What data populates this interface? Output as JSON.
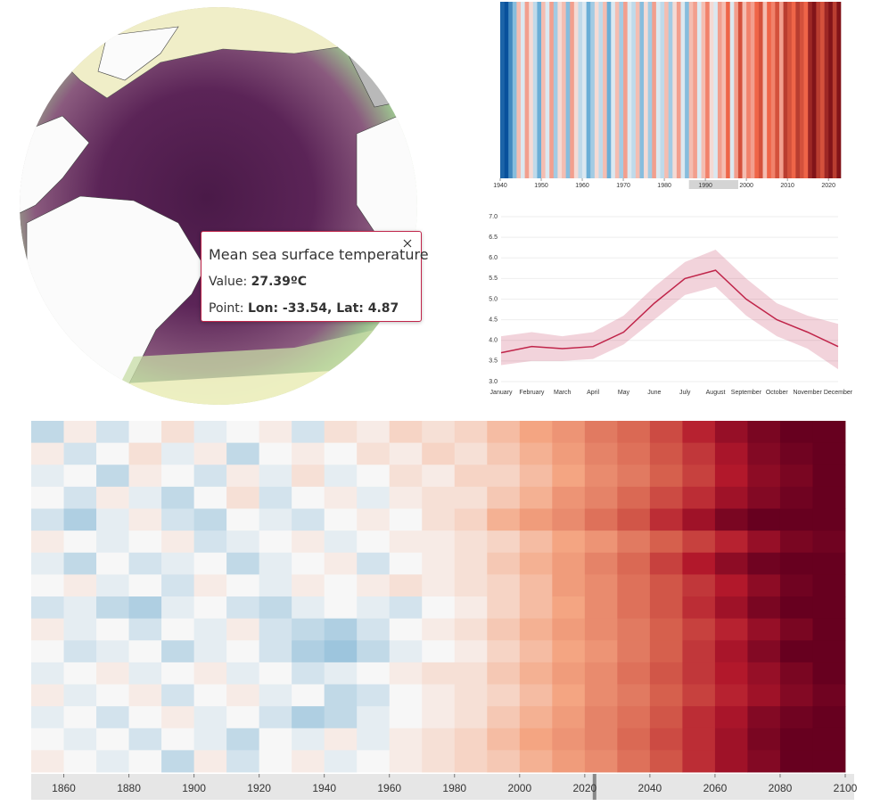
{
  "tooltip": {
    "title": "Mean sea surface temperature",
    "value_label": "Value:",
    "value": "27.39ºC",
    "point_label": "Point:",
    "point": "Lon: -33.54, Lat: 4.87"
  },
  "chart_data": [
    {
      "type": "stripes",
      "x": [
        1940,
        1941,
        1942,
        1943,
        1944,
        1945,
        1946,
        1947,
        1948,
        1949,
        1950,
        1951,
        1952,
        1953,
        1954,
        1955,
        1956,
        1957,
        1958,
        1959,
        1960,
        1961,
        1962,
        1963,
        1964,
        1965,
        1966,
        1967,
        1968,
        1969,
        1970,
        1971,
        1972,
        1973,
        1974,
        1975,
        1976,
        1977,
        1978,
        1979,
        1980,
        1981,
        1982,
        1983,
        1984,
        1985,
        1986,
        1987,
        1988,
        1989,
        1990,
        1991,
        1992,
        1993,
        1994,
        1995,
        1996,
        1997,
        1998,
        1999,
        2000,
        2001,
        2002,
        2003,
        2004,
        2005,
        2006,
        2007,
        2008,
        2009,
        2010,
        2011,
        2012,
        2013,
        2014,
        2015,
        2016,
        2017,
        2018,
        2019,
        2020,
        2021,
        2022
      ],
      "values": [
        -0.9,
        -1.0,
        -0.7,
        -0.4,
        0.2,
        -0.1,
        0.3,
        0.1,
        -0.2,
        -0.5,
        0.2,
        -0.1,
        0.3,
        -0.3,
        0.1,
        0.2,
        -0.4,
        0.3,
        0.1,
        -0.2,
        -0.1,
        -0.5,
        -0.3,
        0.1,
        -0.2,
        0.2,
        -0.5,
        -0.1,
        0.2,
        -0.3,
        0.3,
        -0.1,
        -0.2,
        0.2,
        -0.4,
        0.1,
        -0.3,
        0.3,
        -0.1,
        -0.2,
        0.2,
        -0.3,
        0.1,
        0.3,
        -0.1,
        -0.4,
        0.2,
        0.3,
        -0.1,
        0.2,
        0.4,
        0.1,
        -0.1,
        0.3,
        0.2,
        0.5,
        -0.1,
        0.3,
        0.6,
        0.2,
        0.4,
        0.3,
        0.5,
        0.6,
        0.2,
        0.5,
        0.4,
        0.6,
        0.3,
        0.7,
        0.6,
        0.5,
        0.7,
        0.6,
        0.5,
        0.8,
        0.9,
        0.7,
        0.6,
        0.8,
        0.9,
        0.7,
        0.9
      ],
      "colors": [
        "#08519c",
        "#6baed6",
        "#f7f7f7",
        "#ef6548",
        "#67000d"
      ],
      "color_domain": [
        -1,
        -0.5,
        0,
        0.5,
        1
      ],
      "xlim": [
        1940,
        2023
      ],
      "xticks": [
        1940,
        1950,
        1960,
        1970,
        1980,
        1990,
        2000,
        2010,
        2020
      ],
      "brush": [
        1986,
        1998
      ]
    },
    {
      "type": "line",
      "categories": [
        "January",
        "February",
        "March",
        "April",
        "May",
        "June",
        "July",
        "August",
        "September",
        "October",
        "November",
        "December"
      ],
      "values": [
        3.7,
        3.85,
        3.8,
        3.85,
        4.2,
        4.9,
        5.5,
        5.7,
        5.0,
        4.5,
        4.2,
        3.85
      ],
      "band_low": [
        3.4,
        3.5,
        3.5,
        3.55,
        3.9,
        4.5,
        5.1,
        5.3,
        4.6,
        4.1,
        3.8,
        3.3
      ],
      "band_high": [
        4.1,
        4.2,
        4.1,
        4.2,
        4.6,
        5.3,
        5.9,
        6.2,
        5.5,
        4.9,
        4.6,
        4.4
      ],
      "color": "#c0254a",
      "ylim": [
        3,
        7
      ],
      "yticks": [
        {
          "value": 3,
          "label": "3.0"
        },
        3.5,
        {
          "value": 4,
          "label": "4.0"
        },
        4.5,
        {
          "value": 5,
          "label": "5.0"
        },
        5.5,
        {
          "value": 6,
          "label": "6.0"
        },
        6.5,
        {
          "value": 7,
          "label": "7.0"
        }
      ],
      "grid": true
    },
    {
      "type": "heatmap",
      "bins": [
        1850,
        1860,
        1870,
        1880,
        1890,
        1900,
        1910,
        1920,
        1930,
        1940,
        1950,
        1960,
        1970,
        1980,
        1990,
        2000,
        2010,
        2020,
        2030,
        2040,
        2050,
        2060,
        2070,
        2080,
        2090,
        2100
      ],
      "rows": [
        [
          -0.3,
          0.1,
          -0.2,
          0,
          0.2,
          -0.1,
          0,
          0.1,
          -0.2,
          0.2,
          0.1,
          0.3,
          0.2,
          0.3,
          0.5,
          0.7,
          0.9,
          1.2,
          1.4,
          1.7,
          2.1,
          2.5,
          2.8,
          3.0,
          3.0
        ],
        [
          0.1,
          -0.2,
          0,
          0.2,
          -0.1,
          0.1,
          -0.3,
          0,
          0.1,
          0,
          0.2,
          0.1,
          0.3,
          0.2,
          0.4,
          0.6,
          0.8,
          1.1,
          1.3,
          1.6,
          1.9,
          2.3,
          2.7,
          2.9,
          3.0
        ],
        [
          -0.1,
          0,
          -0.3,
          0.1,
          0,
          -0.2,
          0.1,
          -0.1,
          0.2,
          -0.1,
          0,
          0.2,
          0.1,
          0.3,
          0.3,
          0.5,
          0.7,
          1.0,
          1.2,
          1.5,
          1.8,
          2.2,
          2.6,
          2.8,
          3.0
        ],
        [
          0,
          -0.2,
          0.1,
          -0.1,
          -0.3,
          0,
          0.2,
          -0.2,
          0,
          0.1,
          -0.1,
          0.1,
          0.2,
          0.2,
          0.4,
          0.6,
          0.9,
          1.1,
          1.4,
          1.7,
          2.0,
          2.4,
          2.7,
          2.9,
          3.0
        ],
        [
          -0.2,
          -0.4,
          -0.1,
          0.1,
          -0.2,
          -0.3,
          0,
          -0.1,
          -0.2,
          0,
          0.1,
          0,
          0.2,
          0.3,
          0.6,
          0.8,
          1.0,
          1.3,
          1.6,
          2.0,
          2.4,
          2.8,
          3.0,
          3.0,
          3.0
        ],
        [
          0.1,
          0,
          -0.1,
          0,
          0.1,
          -0.2,
          -0.1,
          0,
          0.1,
          -0.1,
          0,
          0.1,
          0.1,
          0.2,
          0.3,
          0.5,
          0.7,
          0.9,
          1.2,
          1.5,
          1.8,
          2.1,
          2.5,
          2.8,
          2.9
        ],
        [
          -0.1,
          -0.3,
          0,
          -0.2,
          -0.1,
          0,
          -0.3,
          -0.1,
          0,
          0.1,
          -0.2,
          0,
          0.1,
          0.2,
          0.4,
          0.6,
          0.8,
          1.1,
          1.4,
          1.8,
          2.2,
          2.6,
          2.9,
          3.0,
          3.0
        ],
        [
          0,
          0.1,
          -0.1,
          0,
          -0.2,
          0.1,
          0,
          -0.1,
          0.1,
          0,
          0.1,
          0.2,
          0.1,
          0.2,
          0.3,
          0.5,
          0.8,
          1.0,
          1.3,
          1.6,
          1.9,
          2.2,
          2.6,
          2.9,
          3.0
        ],
        [
          -0.2,
          -0.1,
          -0.3,
          -0.4,
          -0.1,
          0,
          -0.2,
          -0.3,
          -0.1,
          0,
          -0.1,
          -0.2,
          0,
          0.1,
          0.3,
          0.5,
          0.7,
          1.0,
          1.3,
          1.6,
          2.0,
          2.4,
          2.8,
          3.0,
          3.0
        ],
        [
          0.1,
          -0.1,
          0,
          -0.2,
          0,
          -0.1,
          0.1,
          -0.2,
          -0.3,
          -0.4,
          -0.2,
          0,
          0.1,
          0.2,
          0.4,
          0.6,
          0.8,
          1.0,
          1.2,
          1.5,
          1.8,
          2.1,
          2.5,
          2.8,
          3.0
        ],
        [
          0,
          -0.2,
          -0.1,
          0,
          -0.3,
          -0.1,
          0,
          -0.2,
          -0.4,
          -0.5,
          -0.3,
          -0.1,
          0,
          0.1,
          0.3,
          0.5,
          0.7,
          0.9,
          1.2,
          1.5,
          1.9,
          2.3,
          2.7,
          3.0,
          3.0
        ],
        [
          -0.1,
          0,
          0.1,
          -0.1,
          0,
          0.1,
          -0.1,
          0,
          -0.2,
          -0.1,
          0,
          0.1,
          0.2,
          0.2,
          0.4,
          0.6,
          0.8,
          1.0,
          1.3,
          1.6,
          1.9,
          2.2,
          2.5,
          2.8,
          3.0
        ],
        [
          0.1,
          -0.1,
          0,
          0.1,
          -0.2,
          0,
          0.1,
          -0.1,
          0,
          -0.3,
          -0.2,
          0,
          0.1,
          0.2,
          0.3,
          0.5,
          0.7,
          1.0,
          1.2,
          1.5,
          1.8,
          2.1,
          2.4,
          2.7,
          2.9
        ],
        [
          -0.1,
          0,
          -0.2,
          0,
          0.1,
          -0.1,
          0,
          -0.2,
          -0.4,
          -0.3,
          -0.1,
          0,
          0.1,
          0.2,
          0.4,
          0.6,
          0.8,
          1.1,
          1.3,
          1.6,
          2.0,
          2.3,
          2.7,
          2.9,
          3.0
        ],
        [
          0,
          -0.1,
          0,
          -0.2,
          0,
          -0.1,
          -0.3,
          0,
          -0.1,
          0.1,
          -0.1,
          0.1,
          0.2,
          0.3,
          0.5,
          0.7,
          0.9,
          1.1,
          1.4,
          1.7,
          2.0,
          2.4,
          2.8,
          3.0,
          3.0
        ],
        [
          0.1,
          0,
          -0.1,
          0,
          -0.3,
          0.1,
          -0.2,
          0,
          0.1,
          -0.1,
          0,
          0.1,
          0.2,
          0.3,
          0.4,
          0.6,
          0.8,
          1.0,
          1.3,
          1.6,
          2.0,
          2.4,
          2.7,
          3.0,
          3.0
        ]
      ],
      "colors": [
        "#4393c3",
        "#f7f7f7",
        "#f4a582",
        "#d6604d",
        "#b2182b",
        "#67001f"
      ],
      "color_domain": [
        -1,
        0,
        0.7,
        1.5,
        2.2,
        3
      ],
      "xlim": [
        1850,
        2100
      ],
      "xticks": [
        1860,
        1880,
        1900,
        1920,
        1940,
        1960,
        1980,
        2000,
        2020,
        2040,
        2060,
        2080,
        2100
      ],
      "handle": 2023
    }
  ]
}
